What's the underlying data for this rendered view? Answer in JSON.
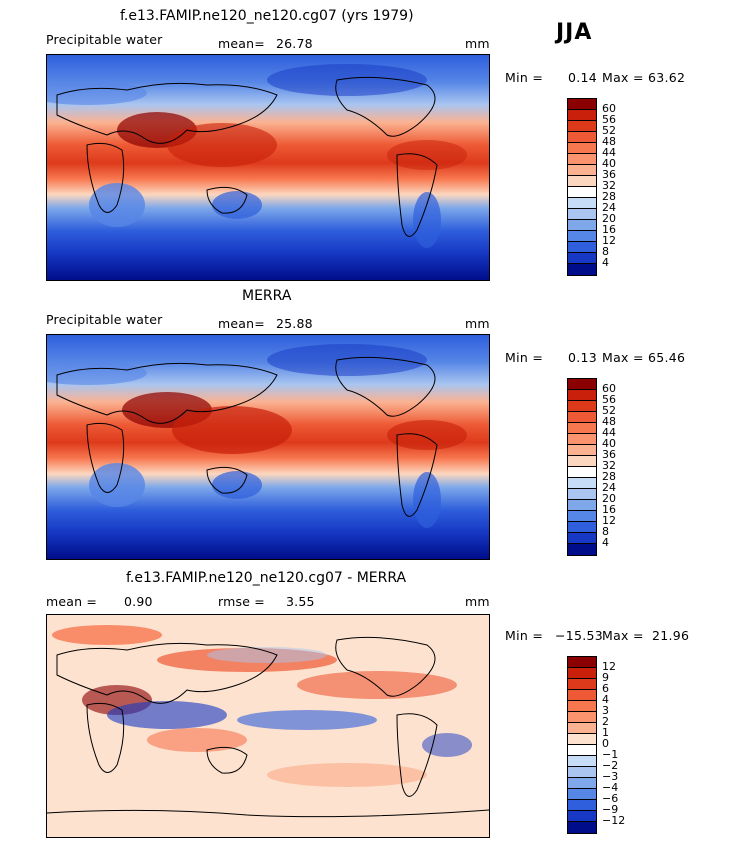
{
  "season": "JJA",
  "panels": [
    {
      "title": "f.e13.FAMIP.ne120_ne120.cg07 (yrs 1979)",
      "variable": "Precipitable water",
      "stat1_label": "mean=",
      "stat1_value": "26.78",
      "stat2_label": "",
      "stat2_value": "",
      "units": "mm",
      "min_label": "Min =",
      "min_value": "0.14",
      "max_label": "Max =",
      "max_value": "63.62",
      "colorbar_ticks": [
        "60",
        "56",
        "52",
        "48",
        "44",
        "40",
        "36",
        "32",
        "28",
        "24",
        "20",
        "16",
        "12",
        "8",
        "4"
      ],
      "colorbar_colors": [
        "#8b0000",
        "#c8200a",
        "#dd3a1c",
        "#ee5a35",
        "#f7774f",
        "#f9946f",
        "#fbb291",
        "#fcd7bf",
        "#ffffff",
        "#c7dcf7",
        "#a9c5f0",
        "#7ea8ea",
        "#5686e6",
        "#2f5fdc",
        "#1638c4",
        "#000d8a"
      ]
    },
    {
      "title": "MERRA",
      "variable": "Precipitable water",
      "stat1_label": "mean=",
      "stat1_value": "25.88",
      "stat2_label": "",
      "stat2_value": "",
      "units": "mm",
      "min_label": "Min =",
      "min_value": "0.13",
      "max_label": "Max =",
      "max_value": "65.46",
      "colorbar_ticks": [
        "60",
        "56",
        "52",
        "48",
        "44",
        "40",
        "36",
        "32",
        "28",
        "24",
        "20",
        "16",
        "12",
        "8",
        "4"
      ],
      "colorbar_colors": [
        "#8b0000",
        "#c8200a",
        "#dd3a1c",
        "#ee5a35",
        "#f7774f",
        "#f9946f",
        "#fbb291",
        "#fcd7bf",
        "#ffffff",
        "#c7dcf7",
        "#a9c5f0",
        "#7ea8ea",
        "#5686e6",
        "#2f5fdc",
        "#1638c4",
        "#000d8a"
      ]
    },
    {
      "title": "f.e13.FAMIP.ne120_ne120.cg07 - MERRA",
      "variable": "",
      "stat1_label": "mean =",
      "stat1_value": "0.90",
      "stat2_label": "rmse =",
      "stat2_value": "3.55",
      "units": "mm",
      "min_label": "Min =",
      "min_value": "−15.53",
      "max_label": "Max =",
      "max_value": "21.96",
      "colorbar_ticks": [
        "12",
        "9",
        "6",
        "4",
        "3",
        "2",
        "1",
        "0",
        "−1",
        "−2",
        "−3",
        "−4",
        "−6",
        "−9",
        "−12"
      ],
      "colorbar_colors": [
        "#8b0000",
        "#c8200a",
        "#dd3a1c",
        "#ee5a35",
        "#f7774f",
        "#f9946f",
        "#fbb291",
        "#fde2cf",
        "#ffffff",
        "#c7dcf7",
        "#a9c5f0",
        "#7ea8ea",
        "#5686e6",
        "#2f5fdc",
        "#1638c4",
        "#000d8a"
      ]
    }
  ]
}
